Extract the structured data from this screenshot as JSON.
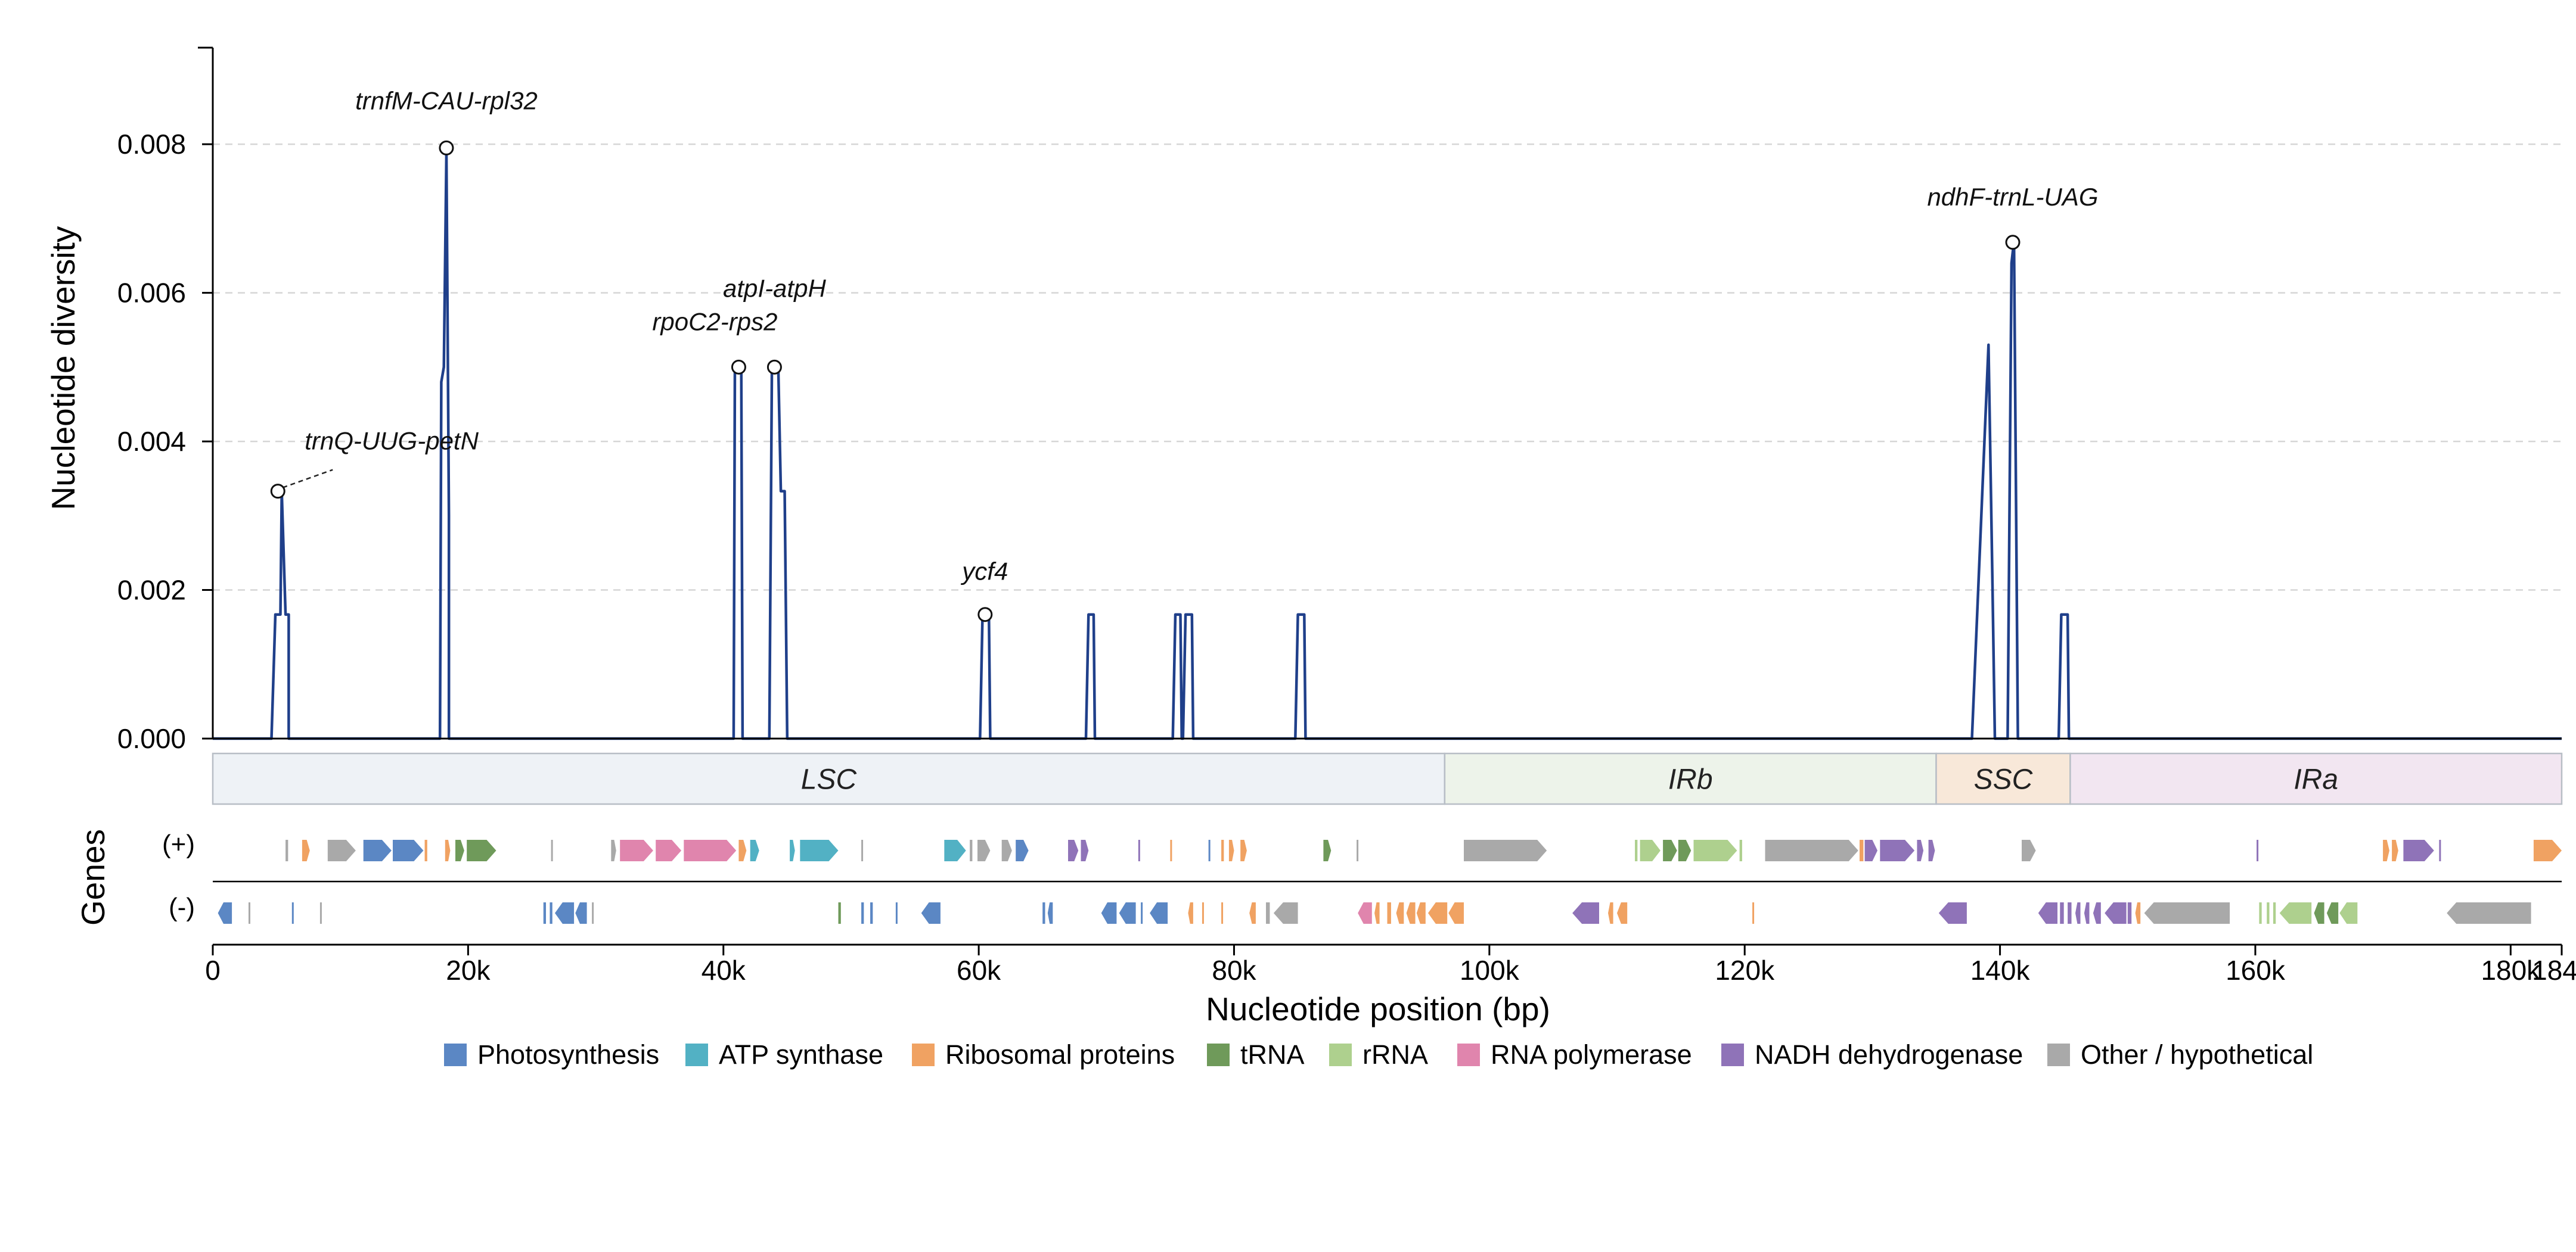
{
  "chart_data": {
    "type": "line",
    "ylabel": "Nucleotide diversity",
    "xlabel": "Nucleotide position (bp)",
    "xlim": [
      0,
      184000
    ],
    "ylim": [
      0,
      0.0093
    ],
    "grid": "horizontal-dashed",
    "x_ticks": [
      0,
      20000,
      40000,
      60000,
      80000,
      100000,
      120000,
      140000,
      160000,
      180000,
      184000
    ],
    "x_tick_labels": [
      "0",
      "20k",
      "40k",
      "60k",
      "80k",
      "100k",
      "120k",
      "140k",
      "160k",
      "180k",
      "184k"
    ],
    "y_ticks": [
      0,
      0.002,
      0.004,
      0.006,
      0.008
    ],
    "y_tick_labels": [
      "0.000",
      "0.002",
      "0.004",
      "0.006",
      "0.008"
    ],
    "series": [
      {
        "color": "#1f3f8a",
        "points": [
          [
            0,
            0
          ],
          [
            4600,
            0
          ],
          [
            4900,
            0.00167
          ],
          [
            5300,
            0.00167
          ],
          [
            5400,
            0.00333
          ],
          [
            5700,
            0.00167
          ],
          [
            5950,
            0.00167
          ],
          [
            5950,
            0
          ],
          [
            17800,
            0
          ],
          [
            17900,
            0.0048
          ],
          [
            18100,
            0.005
          ],
          [
            18300,
            0.0079
          ],
          [
            18500,
            0.003
          ],
          [
            18500,
            0
          ],
          [
            40800,
            0
          ],
          [
            40900,
            0.005
          ],
          [
            41400,
            0.005
          ],
          [
            41500,
            0
          ],
          [
            43600,
            0
          ],
          [
            43800,
            0.005
          ],
          [
            44300,
            0.005
          ],
          [
            44500,
            0.00333
          ],
          [
            44800,
            0.00333
          ],
          [
            45000,
            0
          ],
          [
            60100,
            0
          ],
          [
            60300,
            0.00167
          ],
          [
            60800,
            0.00167
          ],
          [
            60900,
            0
          ],
          [
            68400,
            0
          ],
          [
            68600,
            0.00167
          ],
          [
            69000,
            0.00167
          ],
          [
            69100,
            0
          ],
          [
            75200,
            0
          ],
          [
            75400,
            0.00167
          ],
          [
            75800,
            0.00167
          ],
          [
            75900,
            0
          ],
          [
            76000,
            0
          ],
          [
            76200,
            0.00167
          ],
          [
            76700,
            0.00167
          ],
          [
            76800,
            0
          ],
          [
            84800,
            0
          ],
          [
            85000,
            0.00167
          ],
          [
            85500,
            0.00167
          ],
          [
            85600,
            0
          ],
          [
            137800,
            0
          ],
          [
            139100,
            0.0053
          ],
          [
            139400,
            0.0022
          ],
          [
            139600,
            0
          ],
          [
            140600,
            0
          ],
          [
            140900,
            0.0064
          ],
          [
            141100,
            0.0067
          ],
          [
            141400,
            0
          ],
          [
            144600,
            0
          ],
          [
            144800,
            0.00167
          ],
          [
            145300,
            0.00167
          ],
          [
            145400,
            0
          ],
          [
            184000,
            0
          ]
        ]
      }
    ],
    "peak_annotations": [
      {
        "label": "trnQ-UUG-petN",
        "x": 5100,
        "y": 0.00333
      },
      {
        "label": "trnfM-CAU-rpl32",
        "x": 18300,
        "y": 0.00795
      },
      {
        "label": "rpoC2-rps2",
        "x": 41200,
        "y": 0.005
      },
      {
        "label": "atpI-atpH",
        "x": 44000,
        "y": 0.005
      },
      {
        "label": "ycf4",
        "x": 60500,
        "y": 0.00167
      },
      {
        "label": "ndhF-trnL-UAG",
        "x": 141000,
        "y": 0.00668
      }
    ],
    "regions": [
      {
        "label": "LSC",
        "start": 0,
        "end": 96500,
        "color": "#eef2f6"
      },
      {
        "label": "IRb",
        "start": 96500,
        "end": 135000,
        "color": "#edf3ea"
      },
      {
        "label": "SSC",
        "start": 135000,
        "end": 145500,
        "color": "#f8e8d9"
      },
      {
        "label": "IRa",
        "start": 145500,
        "end": 184000,
        "color": "#f2e6f1"
      }
    ],
    "gene_track": {
      "title": "Genes",
      "plus_label": "(+)",
      "minus_label": "(-)",
      "plus_genes": [
        {
          "start": 5700,
          "end": 5900,
          "cat": "other"
        },
        {
          "start": 7000,
          "end": 7600,
          "cat": "ribo"
        },
        {
          "start": 9000,
          "end": 11200,
          "cat": "other"
        },
        {
          "start": 11800,
          "end": 14000,
          "cat": "photo"
        },
        {
          "start": 14100,
          "end": 16500,
          "cat": "photo"
        },
        {
          "start": 16600,
          "end": 16800,
          "cat": "ribo"
        },
        {
          "start": 18200,
          "end": 18600,
          "cat": "ribo"
        },
        {
          "start": 19000,
          "end": 19700,
          "cat": "trna"
        },
        {
          "start": 19900,
          "end": 22200,
          "cat": "trna"
        },
        {
          "start": 26500,
          "end": 26600,
          "cat": "other"
        },
        {
          "start": 31200,
          "end": 31600,
          "cat": "other"
        },
        {
          "start": 31900,
          "end": 34500,
          "cat": "rnap"
        },
        {
          "start": 34700,
          "end": 36700,
          "cat": "rnap"
        },
        {
          "start": 36900,
          "end": 41000,
          "cat": "rnap"
        },
        {
          "start": 41200,
          "end": 41800,
          "cat": "ribo"
        },
        {
          "start": 42100,
          "end": 42800,
          "cat": "atp"
        },
        {
          "start": 45200,
          "end": 45600,
          "cat": "atp"
        },
        {
          "start": 46000,
          "end": 49000,
          "cat": "atp"
        },
        {
          "start": 50800,
          "end": 50900,
          "cat": "other"
        },
        {
          "start": 57300,
          "end": 59000,
          "cat": "atp"
        },
        {
          "start": 59300,
          "end": 59500,
          "cat": "other"
        },
        {
          "start": 59900,
          "end": 60900,
          "cat": "other"
        },
        {
          "start": 61800,
          "end": 62600,
          "cat": "other"
        },
        {
          "start": 62900,
          "end": 63900,
          "cat": "photo"
        },
        {
          "start": 67000,
          "end": 67800,
          "cat": "ndh"
        },
        {
          "start": 68000,
          "end": 68600,
          "cat": "ndh"
        },
        {
          "start": 72500,
          "end": 72600,
          "cat": "ndh"
        },
        {
          "start": 75000,
          "end": 75100,
          "cat": "ribo"
        },
        {
          "start": 78000,
          "end": 78100,
          "cat": "photo"
        },
        {
          "start": 79000,
          "end": 79200,
          "cat": "ribo"
        },
        {
          "start": 79600,
          "end": 80000,
          "cat": "ribo"
        },
        {
          "start": 80500,
          "end": 81000,
          "cat": "ribo"
        },
        {
          "start": 87000,
          "end": 87600,
          "cat": "trna"
        },
        {
          "start": 89600,
          "end": 89700,
          "cat": "other"
        },
        {
          "start": 98000,
          "end": 104500,
          "cat": "other"
        },
        {
          "start": 111400,
          "end": 111600,
          "cat": "rrna"
        },
        {
          "start": 111800,
          "end": 113400,
          "cat": "rrna"
        },
        {
          "start": 113600,
          "end": 114700,
          "cat": "trna"
        },
        {
          "start": 114800,
          "end": 115800,
          "cat": "trna"
        },
        {
          "start": 116000,
          "end": 119400,
          "cat": "rrna"
        },
        {
          "start": 119600,
          "end": 119800,
          "cat": "rrna"
        },
        {
          "start": 121600,
          "end": 128900,
          "cat": "other"
        },
        {
          "start": 129000,
          "end": 129300,
          "cat": "ribo"
        },
        {
          "start": 129400,
          "end": 130400,
          "cat": "ndh"
        },
        {
          "start": 130600,
          "end": 133300,
          "cat": "ndh"
        },
        {
          "start": 133500,
          "end": 134000,
          "cat": "ndh"
        },
        {
          "start": 134400,
          "end": 134900,
          "cat": "ndh"
        },
        {
          "start": 141700,
          "end": 142800,
          "cat": "other"
        },
        {
          "start": 160100,
          "end": 160200,
          "cat": "ndh"
        },
        {
          "start": 170000,
          "end": 170500,
          "cat": "ribo"
        },
        {
          "start": 170700,
          "end": 171200,
          "cat": "ribo"
        },
        {
          "start": 171600,
          "end": 174000,
          "cat": "ndh"
        },
        {
          "start": 174400,
          "end": 174500,
          "cat": "ndh"
        },
        {
          "start": 181800,
          "end": 184000,
          "cat": "ribo"
        }
      ],
      "minus_genes": [
        {
          "start": 400,
          "end": 1500,
          "cat": "photo"
        },
        {
          "start": 2800,
          "end": 2900,
          "cat": "other"
        },
        {
          "start": 6200,
          "end": 6300,
          "cat": "photo"
        },
        {
          "start": 8400,
          "end": 8500,
          "cat": "other"
        },
        {
          "start": 25900,
          "end": 26100,
          "cat": "photo"
        },
        {
          "start": 26400,
          "end": 26600,
          "cat": "photo"
        },
        {
          "start": 26800,
          "end": 28300,
          "cat": "photo"
        },
        {
          "start": 28400,
          "end": 29300,
          "cat": "photo"
        },
        {
          "start": 29700,
          "end": 29800,
          "cat": "other"
        },
        {
          "start": 49000,
          "end": 49200,
          "cat": "trna"
        },
        {
          "start": 50800,
          "end": 51000,
          "cat": "photo"
        },
        {
          "start": 51500,
          "end": 51700,
          "cat": "photo"
        },
        {
          "start": 53500,
          "end": 53600,
          "cat": "photo"
        },
        {
          "start": 55500,
          "end": 57000,
          "cat": "photo"
        },
        {
          "start": 65000,
          "end": 65200,
          "cat": "photo"
        },
        {
          "start": 65400,
          "end": 65800,
          "cat": "photo"
        },
        {
          "start": 69600,
          "end": 70800,
          "cat": "photo"
        },
        {
          "start": 71000,
          "end": 72300,
          "cat": "photo"
        },
        {
          "start": 72700,
          "end": 72800,
          "cat": "photo"
        },
        {
          "start": 73400,
          "end": 74800,
          "cat": "photo"
        },
        {
          "start": 76400,
          "end": 76800,
          "cat": "ribo"
        },
        {
          "start": 77500,
          "end": 77600,
          "cat": "ribo"
        },
        {
          "start": 79000,
          "end": 79100,
          "cat": "ribo"
        },
        {
          "start": 81200,
          "end": 81700,
          "cat": "ribo"
        },
        {
          "start": 82500,
          "end": 82800,
          "cat": "other"
        },
        {
          "start": 83100,
          "end": 85000,
          "cat": "other"
        },
        {
          "start": 89700,
          "end": 90800,
          "cat": "rnap"
        },
        {
          "start": 91000,
          "end": 91400,
          "cat": "ribo"
        },
        {
          "start": 92000,
          "end": 92300,
          "cat": "ribo"
        },
        {
          "start": 92700,
          "end": 93300,
          "cat": "ribo"
        },
        {
          "start": 93500,
          "end": 94200,
          "cat": "ribo"
        },
        {
          "start": 94300,
          "end": 95000,
          "cat": "ribo"
        },
        {
          "start": 95200,
          "end": 96700,
          "cat": "ribo"
        },
        {
          "start": 96800,
          "end": 98000,
          "cat": "ribo"
        },
        {
          "start": 106500,
          "end": 108600,
          "cat": "ndh"
        },
        {
          "start": 109300,
          "end": 109700,
          "cat": "ribo"
        },
        {
          "start": 110000,
          "end": 110800,
          "cat": "ribo"
        },
        {
          "start": 120600,
          "end": 120700,
          "cat": "ribo"
        },
        {
          "start": 135200,
          "end": 137400,
          "cat": "ndh"
        },
        {
          "start": 143000,
          "end": 144500,
          "cat": "ndh"
        },
        {
          "start": 144700,
          "end": 145000,
          "cat": "ndh"
        },
        {
          "start": 145300,
          "end": 145600,
          "cat": "ndh"
        },
        {
          "start": 145900,
          "end": 146300,
          "cat": "ndh"
        },
        {
          "start": 146600,
          "end": 147000,
          "cat": "ndh"
        },
        {
          "start": 147300,
          "end": 147900,
          "cat": "ndh"
        },
        {
          "start": 148200,
          "end": 149900,
          "cat": "ndh"
        },
        {
          "start": 150000,
          "end": 150300,
          "cat": "ndh"
        },
        {
          "start": 150600,
          "end": 151000,
          "cat": "ribo"
        },
        {
          "start": 151300,
          "end": 158000,
          "cat": "other"
        },
        {
          "start": 160300,
          "end": 160500,
          "cat": "rrna"
        },
        {
          "start": 160900,
          "end": 161100,
          "cat": "rrna"
        },
        {
          "start": 161400,
          "end": 161600,
          "cat": "rrna"
        },
        {
          "start": 161900,
          "end": 164400,
          "cat": "rrna"
        },
        {
          "start": 164600,
          "end": 165400,
          "cat": "trna"
        },
        {
          "start": 165600,
          "end": 166500,
          "cat": "trna"
        },
        {
          "start": 166600,
          "end": 168000,
          "cat": "rrna"
        },
        {
          "start": 175000,
          "end": 181600,
          "cat": "other"
        }
      ]
    },
    "legend": [
      {
        "label": "Photosynthesis",
        "cat": "photo",
        "color": "#5b87c4"
      },
      {
        "label": "ATP synthase",
        "cat": "atp",
        "color": "#52b1c4"
      },
      {
        "label": "Ribosomal proteins",
        "cat": "ribo",
        "color": "#f0a262"
      },
      {
        "label": "tRNA",
        "cat": "trna",
        "color": "#6f9a5a"
      },
      {
        "label": "rRNA",
        "cat": "rrna",
        "color": "#aed08e"
      },
      {
        "label": "RNA polymerase",
        "cat": "rnap",
        "color": "#e085ad"
      },
      {
        "label": "NADH dehydrogenase",
        "cat": "ndh",
        "color": "#8f73b8"
      },
      {
        "label": "Other / hypothetical",
        "cat": "other",
        "color": "#a9a9a9"
      }
    ]
  }
}
